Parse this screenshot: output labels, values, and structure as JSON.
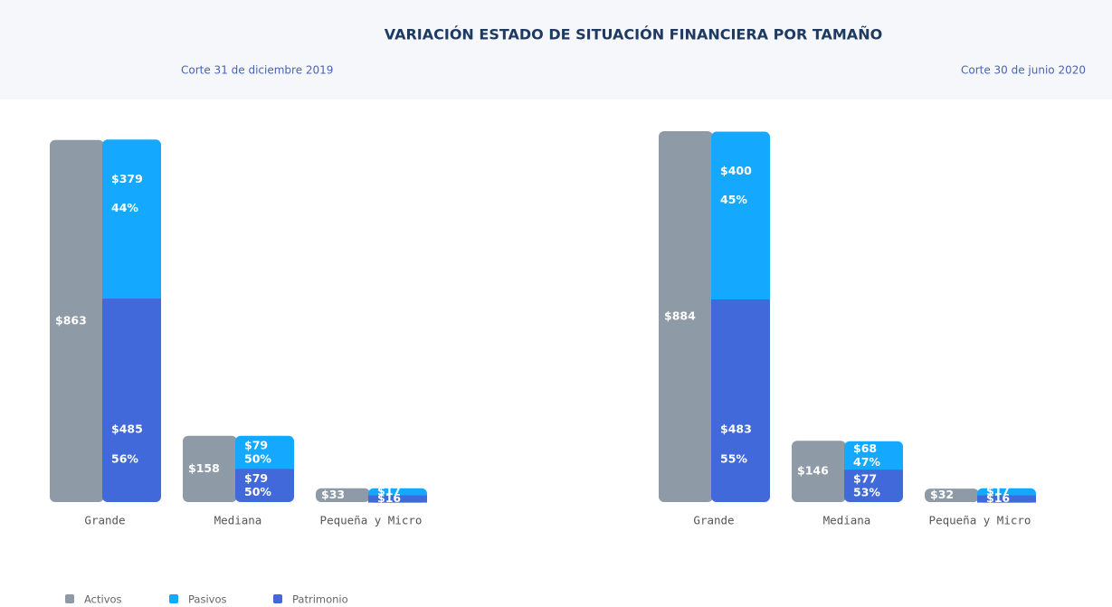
{
  "title": "VARIACIÓN ESTADO DE SITUACIÓN FINANCIERA POR TAMAÑO",
  "chart_data": [
    {
      "type": "bar",
      "subtitle": "Corte 31 de diciembre 2019",
      "categories": [
        "Grande",
        "Mediana",
        "Pequeña y Micro"
      ],
      "ylim": [
        0,
        884
      ],
      "series": [
        {
          "name": "Activos",
          "color": "#8e9aa6",
          "values": [
            863,
            158,
            33
          ],
          "value_labels": [
            "$863",
            "$158",
            "$33"
          ]
        },
        {
          "name": "Pasivos",
          "color": "#14a9ff",
          "values": [
            379,
            79,
            17
          ],
          "value_labels": [
            "$379",
            "$79",
            "$17"
          ],
          "shares": [
            44,
            50,
            null
          ],
          "share_labels": [
            "44%",
            "50%",
            null
          ]
        },
        {
          "name": "Patrimonio",
          "color": "#4169d9",
          "values": [
            485,
            79,
            16
          ],
          "value_labels": [
            "$485",
            "$79",
            "$16"
          ],
          "shares": [
            56,
            50,
            null
          ],
          "share_labels": [
            "56%",
            "50%",
            null
          ]
        }
      ]
    },
    {
      "type": "bar",
      "subtitle": "Corte 30 de junio 2020",
      "categories": [
        "Grande",
        "Mediana",
        "Pequeña y Micro"
      ],
      "ylim": [
        0,
        884
      ],
      "series": [
        {
          "name": "Activos",
          "color": "#8e9aa6",
          "values": [
            884,
            146,
            32
          ],
          "value_labels": [
            "$884",
            "$146",
            "$32"
          ]
        },
        {
          "name": "Pasivos",
          "color": "#14a9ff",
          "values": [
            400,
            68,
            17
          ],
          "value_labels": [
            "$400",
            "$68",
            "$17"
          ],
          "shares": [
            45,
            47,
            null
          ],
          "share_labels": [
            "45%",
            "47%",
            null
          ]
        },
        {
          "name": "Patrimonio",
          "color": "#4169d9",
          "values": [
            483,
            77,
            16
          ],
          "value_labels": [
            "$483",
            "$77",
            "$16"
          ],
          "shares": [
            55,
            53,
            null
          ],
          "share_labels": [
            "55%",
            "53%",
            null
          ]
        }
      ]
    }
  ]
}
